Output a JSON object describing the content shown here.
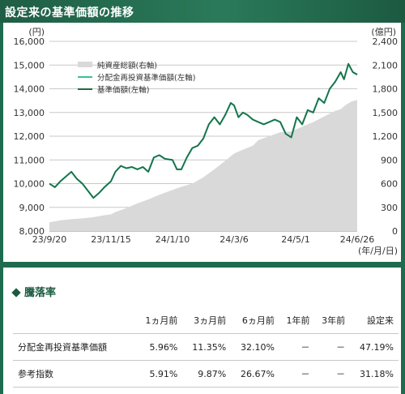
{
  "header": {
    "title": "設定来の基準価額の推移"
  },
  "chart_data": {
    "type": "line",
    "left_unit": "(円)",
    "right_unit": "(億円)",
    "x_unit": "(年/月/日)",
    "x_ticks": [
      "23/9/20",
      "23/11/15",
      "24/1/10",
      "24/3/6",
      "24/5/1",
      "24/6/26"
    ],
    "left_ticks": [
      "16,000",
      "15,000",
      "14,000",
      "13,000",
      "12,000",
      "11,000",
      "10,000",
      "9,000",
      "8,000"
    ],
    "right_ticks": [
      "2,400",
      "2,100",
      "1,800",
      "1,500",
      "1,200",
      "900",
      "600",
      "300",
      "0"
    ],
    "ylim_left": [
      8000,
      16000
    ],
    "ylim_right": [
      0,
      2400
    ],
    "xlim": [
      0,
      280
    ],
    "grid": true,
    "legend_position": "top-left",
    "series": [
      {
        "name": "純資産総額(右軸)",
        "axis": "right",
        "style": "area",
        "color": "#d9d9d9",
        "x": [
          0,
          10,
          20,
          30,
          40,
          50,
          56,
          60,
          70,
          80,
          90,
          100,
          112,
          120,
          130,
          140,
          150,
          160,
          168,
          176,
          185,
          190,
          200,
          210,
          220,
          230,
          240,
          250,
          260,
          265,
          270,
          275,
          280
        ],
        "values": [
          110,
          135,
          150,
          160,
          175,
          200,
          210,
          240,
          290,
          350,
          400,
          460,
          520,
          560,
          600,
          680,
          780,
          890,
          980,
          1030,
          1080,
          1150,
          1200,
          1250,
          1260,
          1320,
          1380,
          1450,
          1520,
          1540,
          1600,
          1640,
          1660
        ]
      },
      {
        "name": "分配金再投資基準価額(左軸)",
        "axis": "left",
        "style": "line",
        "color": "#3dbf98",
        "x": [
          0,
          5,
          10,
          15,
          20,
          25,
          30,
          35,
          40,
          45,
          50,
          56,
          60,
          65,
          70,
          75,
          80,
          85,
          90,
          95,
          100,
          105,
          112,
          116,
          120,
          125,
          130,
          135,
          140,
          145,
          150,
          155,
          160,
          165,
          168,
          172,
          176,
          180,
          185,
          190,
          195,
          200,
          205,
          210,
          215,
          220,
          225,
          230,
          235,
          240,
          245,
          250,
          255,
          260,
          265,
          268,
          272,
          276,
          280
        ],
        "values": [
          10000,
          9850,
          10100,
          10300,
          10500,
          10200,
          10000,
          9700,
          9400,
          9600,
          9850,
          10100,
          10500,
          10750,
          10650,
          10700,
          10600,
          10700,
          10500,
          11100,
          11200,
          11050,
          11000,
          10600,
          10600,
          11100,
          11500,
          11600,
          11900,
          12500,
          12800,
          12500,
          12900,
          13400,
          13300,
          12800,
          13000,
          12900,
          12700,
          12600,
          12500,
          12600,
          12700,
          12600,
          12100,
          11950,
          12800,
          12500,
          13100,
          13000,
          13600,
          13400,
          14000,
          14300,
          14700,
          14400,
          15050,
          14700,
          14600
        ]
      },
      {
        "name": "基準価額(左軸)",
        "axis": "left",
        "style": "line",
        "color": "#1e6b45",
        "x": [
          0,
          5,
          10,
          15,
          20,
          25,
          30,
          35,
          40,
          45,
          50,
          56,
          60,
          65,
          70,
          75,
          80,
          85,
          90,
          95,
          100,
          105,
          112,
          116,
          120,
          125,
          130,
          135,
          140,
          145,
          150,
          155,
          160,
          165,
          168,
          172,
          176,
          180,
          185,
          190,
          195,
          200,
          205,
          210,
          215,
          220,
          225,
          230,
          235,
          240,
          245,
          250,
          255,
          260,
          265,
          268,
          272,
          276,
          280
        ],
        "values": [
          10000,
          9850,
          10100,
          10300,
          10500,
          10200,
          10000,
          9700,
          9400,
          9600,
          9850,
          10100,
          10500,
          10750,
          10650,
          10700,
          10600,
          10700,
          10500,
          11100,
          11200,
          11050,
          11000,
          10600,
          10600,
          11100,
          11500,
          11600,
          11900,
          12500,
          12800,
          12500,
          12900,
          13400,
          13300,
          12800,
          13000,
          12900,
          12700,
          12600,
          12500,
          12600,
          12700,
          12600,
          12100,
          11950,
          12800,
          12500,
          13100,
          13000,
          13600,
          13400,
          14000,
          14300,
          14700,
          14400,
          15050,
          14700,
          14600
        ]
      }
    ]
  },
  "performance": {
    "title": "騰落率",
    "columns": [
      "",
      "1ヵ月前",
      "3ヵ月前",
      "6ヵ月前",
      "1年前",
      "3年前",
      "設定来"
    ],
    "rows": [
      {
        "label": "分配金再投資基準価額",
        "values": [
          "5.96%",
          "11.35%",
          "32.10%",
          "－",
          "－",
          "47.19%"
        ]
      },
      {
        "label": "参考指数",
        "values": [
          "5.91%",
          "9.87%",
          "26.67%",
          "－",
          "－",
          "31.18%"
        ]
      }
    ]
  }
}
